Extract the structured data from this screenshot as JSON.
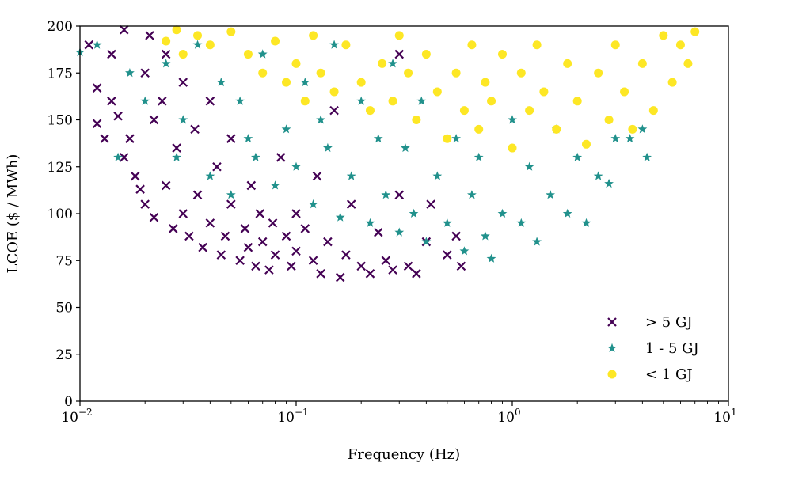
{
  "chart_data": {
    "type": "scatter",
    "title": "",
    "xlabel": "Frequency (Hz)",
    "ylabel": "LCOE ($ / MWh)",
    "xscale": "log",
    "xlim": [
      0.01,
      10
    ],
    "ylim": [
      0,
      200
    ],
    "grid": false,
    "legend_placement": "bottom-right",
    "xticks": [
      {
        "value": 0.01,
        "base": "10",
        "exp": "−2"
      },
      {
        "value": 0.1,
        "base": "10",
        "exp": "−1"
      },
      {
        "value": 1,
        "base": "10",
        "exp": "0"
      },
      {
        "value": 10,
        "base": "10",
        "exp": "1"
      }
    ],
    "yticks": [
      0,
      25,
      50,
      75,
      100,
      125,
      150,
      175,
      200
    ],
    "series": [
      {
        "name": "> 5 GJ",
        "marker": "x",
        "color": "#440154",
        "points": [
          [
            0.011,
            190
          ],
          [
            0.012,
            167
          ],
          [
            0.012,
            148
          ],
          [
            0.013,
            140
          ],
          [
            0.014,
            185
          ],
          [
            0.014,
            160
          ],
          [
            0.015,
            152
          ],
          [
            0.016,
            130
          ],
          [
            0.016,
            198
          ],
          [
            0.017,
            140
          ],
          [
            0.018,
            120
          ],
          [
            0.019,
            113
          ],
          [
            0.02,
            105
          ],
          [
            0.02,
            175
          ],
          [
            0.021,
            195
          ],
          [
            0.022,
            150
          ],
          [
            0.022,
            98
          ],
          [
            0.024,
            160
          ],
          [
            0.025,
            115
          ],
          [
            0.025,
            185
          ],
          [
            0.027,
            92
          ],
          [
            0.028,
            135
          ],
          [
            0.03,
            100
          ],
          [
            0.03,
            170
          ],
          [
            0.032,
            88
          ],
          [
            0.034,
            145
          ],
          [
            0.035,
            110
          ],
          [
            0.037,
            82
          ],
          [
            0.04,
            95
          ],
          [
            0.04,
            160
          ],
          [
            0.043,
            125
          ],
          [
            0.045,
            78
          ],
          [
            0.047,
            88
          ],
          [
            0.05,
            105
          ],
          [
            0.05,
            140
          ],
          [
            0.055,
            75
          ],
          [
            0.058,
            92
          ],
          [
            0.06,
            82
          ],
          [
            0.062,
            115
          ],
          [
            0.065,
            72
          ],
          [
            0.068,
            100
          ],
          [
            0.07,
            85
          ],
          [
            0.075,
            70
          ],
          [
            0.078,
            95
          ],
          [
            0.08,
            78
          ],
          [
            0.085,
            130
          ],
          [
            0.09,
            88
          ],
          [
            0.095,
            72
          ],
          [
            0.1,
            80
          ],
          [
            0.1,
            100
          ],
          [
            0.11,
            92
          ],
          [
            0.12,
            75
          ],
          [
            0.125,
            120
          ],
          [
            0.13,
            68
          ],
          [
            0.14,
            85
          ],
          [
            0.15,
            155
          ],
          [
            0.16,
            66
          ],
          [
            0.17,
            78
          ],
          [
            0.18,
            105
          ],
          [
            0.2,
            72
          ],
          [
            0.22,
            68
          ],
          [
            0.24,
            90
          ],
          [
            0.26,
            75
          ],
          [
            0.28,
            70
          ],
          [
            0.3,
            110
          ],
          [
            0.3,
            185
          ],
          [
            0.33,
            72
          ],
          [
            0.36,
            68
          ],
          [
            0.4,
            85
          ],
          [
            0.42,
            105
          ],
          [
            0.5,
            78
          ],
          [
            0.58,
            72
          ],
          [
            0.55,
            88
          ]
        ]
      },
      {
        "name": "1 - 5 GJ",
        "marker": "star",
        "color": "#21918c",
        "points": [
          [
            0.01,
            186
          ],
          [
            0.012,
            190
          ],
          [
            0.015,
            130
          ],
          [
            0.017,
            175
          ],
          [
            0.02,
            160
          ],
          [
            0.025,
            180
          ],
          [
            0.028,
            130
          ],
          [
            0.03,
            150
          ],
          [
            0.035,
            190
          ],
          [
            0.04,
            120
          ],
          [
            0.045,
            170
          ],
          [
            0.05,
            110
          ],
          [
            0.055,
            160
          ],
          [
            0.06,
            140
          ],
          [
            0.065,
            130
          ],
          [
            0.07,
            185
          ],
          [
            0.08,
            115
          ],
          [
            0.09,
            145
          ],
          [
            0.1,
            125
          ],
          [
            0.11,
            170
          ],
          [
            0.12,
            105
          ],
          [
            0.13,
            150
          ],
          [
            0.14,
            135
          ],
          [
            0.15,
            190
          ],
          [
            0.16,
            98
          ],
          [
            0.18,
            120
          ],
          [
            0.2,
            160
          ],
          [
            0.22,
            95
          ],
          [
            0.24,
            140
          ],
          [
            0.26,
            110
          ],
          [
            0.28,
            180
          ],
          [
            0.3,
            90
          ],
          [
            0.32,
            135
          ],
          [
            0.35,
            100
          ],
          [
            0.38,
            160
          ],
          [
            0.4,
            85
          ],
          [
            0.45,
            120
          ],
          [
            0.5,
            95
          ],
          [
            0.55,
            140
          ],
          [
            0.6,
            80
          ],
          [
            0.65,
            110
          ],
          [
            0.7,
            130
          ],
          [
            0.75,
            88
          ],
          [
            0.8,
            76
          ],
          [
            0.9,
            100
          ],
          [
            1.0,
            150
          ],
          [
            1.1,
            95
          ],
          [
            1.2,
            125
          ],
          [
            1.3,
            85
          ],
          [
            1.5,
            110
          ],
          [
            1.6,
            145
          ],
          [
            1.8,
            100
          ],
          [
            2.0,
            130
          ],
          [
            2.2,
            95
          ],
          [
            2.5,
            120
          ],
          [
            2.8,
            116
          ],
          [
            3.0,
            140
          ],
          [
            3.5,
            140
          ],
          [
            4.0,
            145
          ],
          [
            4.2,
            130
          ]
        ]
      },
      {
        "name": "< 1 GJ",
        "marker": "circle",
        "color": "#fde725",
        "points": [
          [
            0.025,
            192
          ],
          [
            0.028,
            198
          ],
          [
            0.03,
            185
          ],
          [
            0.035,
            195
          ],
          [
            0.04,
            190
          ],
          [
            0.05,
            197
          ],
          [
            0.06,
            185
          ],
          [
            0.07,
            175
          ],
          [
            0.08,
            192
          ],
          [
            0.09,
            170
          ],
          [
            0.1,
            180
          ],
          [
            0.11,
            160
          ],
          [
            0.12,
            195
          ],
          [
            0.13,
            175
          ],
          [
            0.15,
            165
          ],
          [
            0.17,
            190
          ],
          [
            0.2,
            170
          ],
          [
            0.22,
            155
          ],
          [
            0.25,
            180
          ],
          [
            0.28,
            160
          ],
          [
            0.3,
            195
          ],
          [
            0.33,
            175
          ],
          [
            0.36,
            150
          ],
          [
            0.4,
            185
          ],
          [
            0.45,
            165
          ],
          [
            0.5,
            140
          ],
          [
            0.55,
            175
          ],
          [
            0.6,
            155
          ],
          [
            0.65,
            190
          ],
          [
            0.7,
            145
          ],
          [
            0.75,
            170
          ],
          [
            0.8,
            160
          ],
          [
            0.9,
            185
          ],
          [
            1.0,
            135
          ],
          [
            1.1,
            175
          ],
          [
            1.2,
            155
          ],
          [
            1.3,
            190
          ],
          [
            1.4,
            165
          ],
          [
            1.6,
            145
          ],
          [
            1.8,
            180
          ],
          [
            2.0,
            160
          ],
          [
            2.2,
            137
          ],
          [
            2.5,
            175
          ],
          [
            2.8,
            150
          ],
          [
            3.0,
            190
          ],
          [
            3.3,
            165
          ],
          [
            3.6,
            145
          ],
          [
            4.0,
            180
          ],
          [
            4.5,
            155
          ],
          [
            5.0,
            195
          ],
          [
            5.5,
            170
          ],
          [
            6.0,
            190
          ],
          [
            6.5,
            180
          ],
          [
            7.0,
            197
          ]
        ]
      }
    ]
  }
}
